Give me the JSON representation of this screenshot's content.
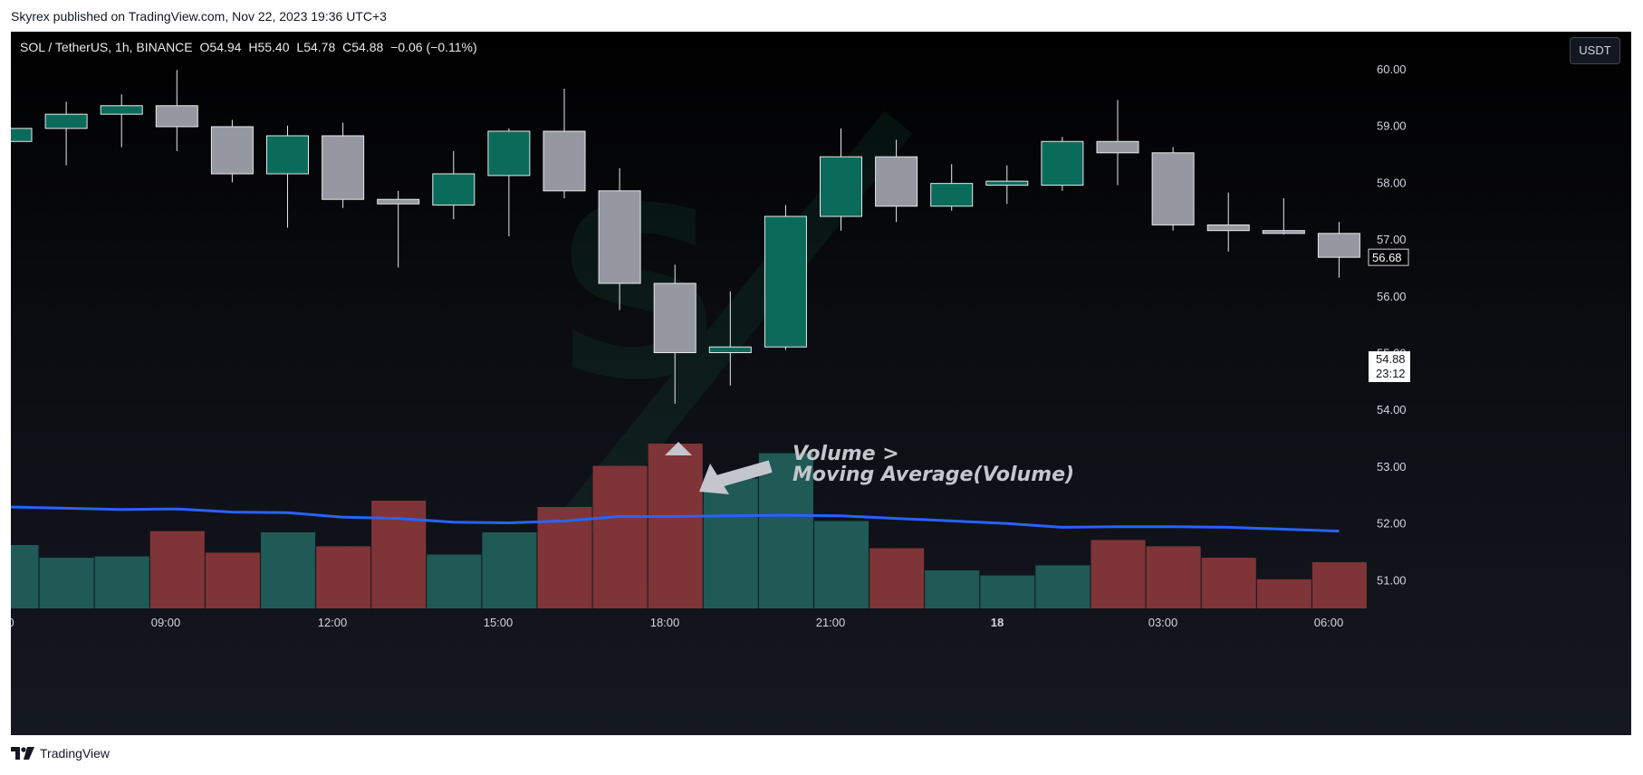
{
  "header": {
    "published": "Skyrex published on TradingView.com, Nov 22, 2023 19:36 UTC+3"
  },
  "legend": {
    "symbol": "SOL / TetherUS, 1h, BINANCE",
    "open": "O54.94",
    "high": "H55.40",
    "low": "L54.78",
    "close": "C54.88",
    "change": "−0.06 (−0.11%)"
  },
  "currency_button": "USDT",
  "annotation": {
    "line1": "Volume >",
    "line2": "Moving Average(Volume)"
  },
  "footer": {
    "brand": "TradingView"
  },
  "colors": {
    "up": "#0b6b5a",
    "down": "#9598a1",
    "volume_up": "#1f5a56",
    "volume_down": "#7f3438",
    "ma_line": "#2962ff",
    "annotation": "#c4c6cc"
  },
  "chart_data": {
    "type": "candlestick",
    "price_axis": {
      "ylim": [
        50.6,
        60.4
      ],
      "ticks": [
        "60.00",
        "59.00",
        "58.00",
        "57.00",
        "56.00",
        "55.00",
        "54.00",
        "53.00",
        "52.00",
        "51.00"
      ],
      "last_price_label": "56.68",
      "current_price_label": "54.88",
      "countdown_label": "23:12"
    },
    "time_axis": {
      "ticks": [
        "0",
        "09:00",
        "12:00",
        "15:00",
        "18:00",
        "21:00",
        "18",
        "03:00",
        "06:00"
      ]
    },
    "candles": [
      {
        "o": 58.72,
        "h": 58.95,
        "l": 58.72,
        "c": 58.95
      },
      {
        "o": 58.95,
        "h": 59.42,
        "l": 58.3,
        "c": 59.2
      },
      {
        "o": 59.2,
        "h": 59.55,
        "l": 58.62,
        "c": 59.35
      },
      {
        "o": 59.35,
        "h": 59.98,
        "l": 58.55,
        "c": 58.98
      },
      {
        "o": 58.98,
        "h": 59.1,
        "l": 58.0,
        "c": 58.15
      },
      {
        "o": 58.15,
        "h": 59.0,
        "l": 57.2,
        "c": 58.82
      },
      {
        "o": 58.82,
        "h": 59.05,
        "l": 57.55,
        "c": 57.7
      },
      {
        "o": 57.7,
        "h": 57.85,
        "l": 56.5,
        "c": 57.62
      },
      {
        "o": 57.6,
        "h": 58.55,
        "l": 57.35,
        "c": 58.15
      },
      {
        "o": 58.12,
        "h": 58.95,
        "l": 57.05,
        "c": 58.9
      },
      {
        "o": 58.9,
        "h": 59.65,
        "l": 57.72,
        "c": 57.85
      },
      {
        "o": 57.85,
        "h": 58.25,
        "l": 55.75,
        "c": 56.22
      },
      {
        "o": 56.22,
        "h": 56.55,
        "l": 54.1,
        "c": 55.0
      },
      {
        "o": 55.0,
        "h": 56.08,
        "l": 54.42,
        "c": 55.1
      },
      {
        "o": 55.1,
        "h": 57.6,
        "l": 55.05,
        "c": 57.4
      },
      {
        "o": 57.4,
        "h": 58.95,
        "l": 57.15,
        "c": 58.45
      },
      {
        "o": 58.45,
        "h": 58.75,
        "l": 57.3,
        "c": 57.58
      },
      {
        "o": 57.58,
        "h": 58.32,
        "l": 57.5,
        "c": 57.98
      },
      {
        "o": 57.95,
        "h": 58.3,
        "l": 57.62,
        "c": 58.02
      },
      {
        "o": 57.95,
        "h": 58.8,
        "l": 57.85,
        "c": 58.72
      },
      {
        "o": 58.72,
        "h": 59.45,
        "l": 57.95,
        "c": 58.52
      },
      {
        "o": 58.52,
        "h": 58.62,
        "l": 57.15,
        "c": 57.25
      },
      {
        "o": 57.25,
        "h": 57.82,
        "l": 56.78,
        "c": 57.15
      },
      {
        "o": 57.15,
        "h": 57.72,
        "l": 57.08,
        "c": 57.1
      },
      {
        "o": 57.1,
        "h": 57.3,
        "l": 56.32,
        "c": 56.68
      }
    ],
    "volume": {
      "values": [
        1.0,
        0.8,
        0.82,
        1.22,
        0.88,
        1.2,
        0.98,
        1.7,
        0.85,
        1.2,
        1.6,
        2.25,
        2.6,
        2.05,
        2.45,
        1.38,
        0.95,
        0.6,
        0.52,
        0.68,
        1.08,
        0.98,
        0.8,
        0.46,
        0.73
      ],
      "ma": [
        1.6,
        1.58,
        1.56,
        1.57,
        1.52,
        1.51,
        1.44,
        1.42,
        1.36,
        1.35,
        1.38,
        1.45,
        1.45,
        1.46,
        1.47,
        1.46,
        1.42,
        1.38,
        1.34,
        1.28,
        1.29,
        1.29,
        1.28,
        1.25,
        1.22
      ]
    }
  }
}
